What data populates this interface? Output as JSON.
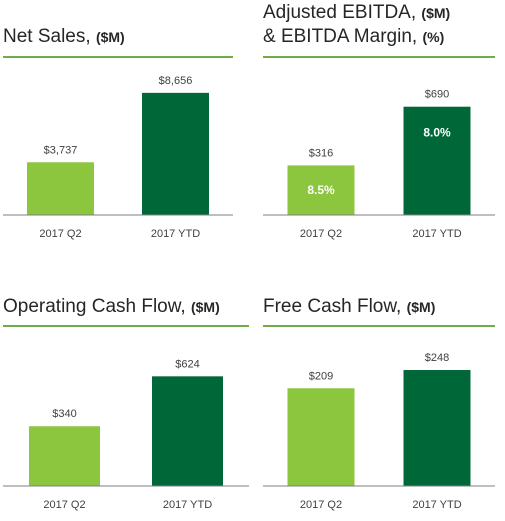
{
  "colors": {
    "light_bar": "#8cc63f",
    "dark_bar": "#006838",
    "rule": "#70ad47",
    "axis": "#7f7f7f",
    "text": "#404040"
  },
  "chart_data": [
    {
      "type": "bar",
      "title": "Net Sales,",
      "title_unit": "($M)",
      "categories": [
        "2017 Q2",
        "2017 YTD"
      ],
      "values": [
        3737,
        8656
      ],
      "value_labels": [
        "$3,737",
        "$8,656"
      ],
      "inner_labels": [
        "",
        ""
      ],
      "ylim": [
        0,
        9000
      ]
    },
    {
      "type": "bar",
      "title": "Adjusted EBITDA,",
      "title_unit": "($M)",
      "title_line2": "& EBITDA Margin,",
      "title_line2_unit": "(%)",
      "categories": [
        "2017 Q2",
        "2017 YTD"
      ],
      "values": [
        316,
        690
      ],
      "value_labels": [
        "$316",
        "$690"
      ],
      "inner_labels": [
        "8.5%",
        "8.0%"
      ],
      "ylim": [
        0,
        720
      ]
    },
    {
      "type": "bar",
      "title": "Operating Cash Flow,",
      "title_unit": "($M)",
      "categories": [
        "2017 Q2",
        "2017 YTD"
      ],
      "values": [
        340,
        624
      ],
      "value_labels": [
        "$340",
        "$624"
      ],
      "inner_labels": [
        "",
        ""
      ],
      "ylim": [
        0,
        660
      ]
    },
    {
      "type": "bar",
      "title": "Free Cash Flow,",
      "title_unit": "($M)",
      "categories": [
        "2017 Q2",
        "2017 YTD"
      ],
      "values": [
        209,
        248
      ],
      "value_labels": [
        "$209",
        "$248"
      ],
      "inner_labels": [
        "",
        ""
      ],
      "ylim": [
        0,
        263
      ]
    }
  ]
}
